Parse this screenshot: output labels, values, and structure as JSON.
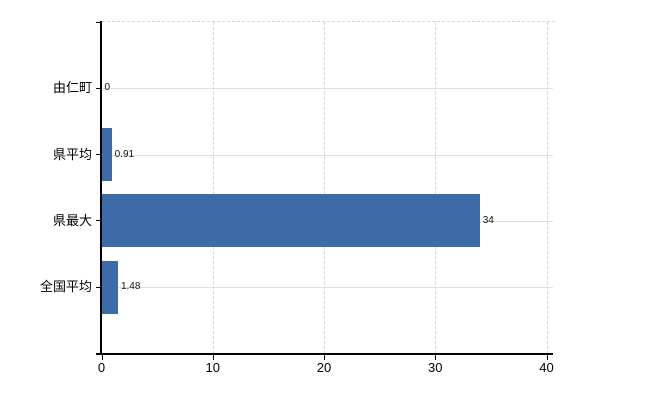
{
  "chart_data": {
    "type": "bar",
    "orientation": "horizontal",
    "title": "",
    "xlabel": "",
    "ylabel": "",
    "categories": [
      "由仁町",
      "県平均",
      "県最大",
      "全国平均"
    ],
    "values": [
      0,
      0.91,
      34,
      1.48
    ],
    "value_labels": [
      "0",
      "0.91",
      "34",
      "1.48"
    ],
    "xlim": [
      0,
      40
    ],
    "x_ticks": [
      0,
      10,
      20,
      30,
      40
    ],
    "x_tick_labels": [
      "0",
      "10",
      "20",
      "30",
      "40"
    ],
    "grid": true,
    "legend": false,
    "colors": {
      "bar": "#3c6ba7",
      "axis": "#000000",
      "h_gridline": "#dce3d8",
      "v_gridline": "#d3d9d0",
      "top_border": "#d9d4d7",
      "background": "#ffffff",
      "text": "#000000"
    }
  }
}
